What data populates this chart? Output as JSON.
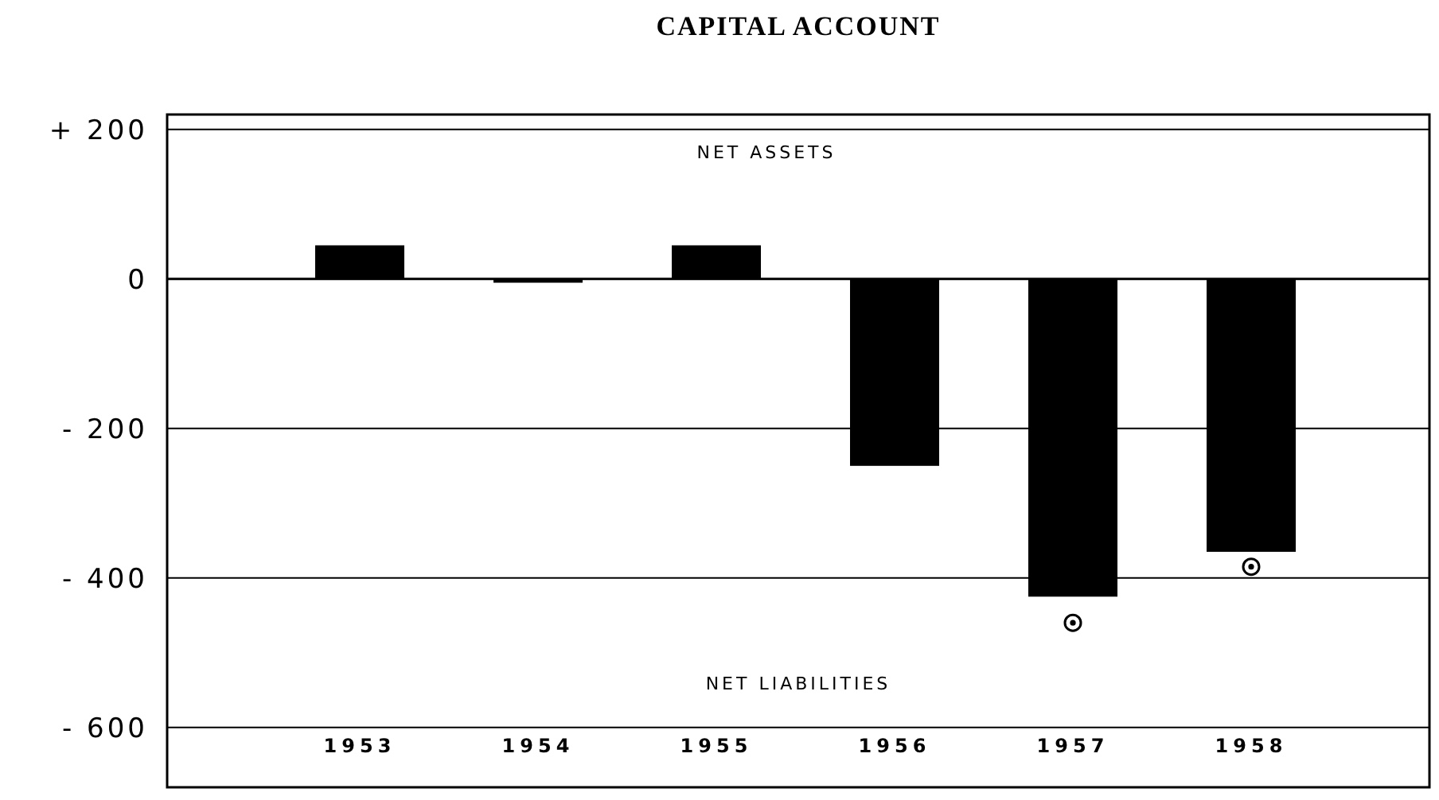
{
  "chart_data": {
    "type": "bar",
    "title": "CAPITAL ACCOUNT",
    "categories": [
      "1953",
      "1954",
      "1955",
      "1956",
      "1957",
      "1958"
    ],
    "series": [
      {
        "color": "#000000",
        "values": [
          45,
          -5,
          45,
          -250,
          -425,
          -365
        ]
      },
      {
        "type": "scatter",
        "color": "#000000",
        "marker": "circle",
        "values": [
          null,
          null,
          null,
          null,
          -460,
          -385
        ]
      }
    ],
    "ylim": [
      -680,
      220
    ],
    "yticks": [
      {
        "value": 200,
        "label": "+ 200"
      },
      0,
      {
        "value": -200,
        "label": "- 200"
      },
      {
        "value": -400,
        "label": "- 400"
      },
      {
        "value": -600,
        "label": "- 600"
      }
    ],
    "grid": "y",
    "annotations": [
      "NET ASSETS",
      "NET LIABILITIES"
    ]
  }
}
